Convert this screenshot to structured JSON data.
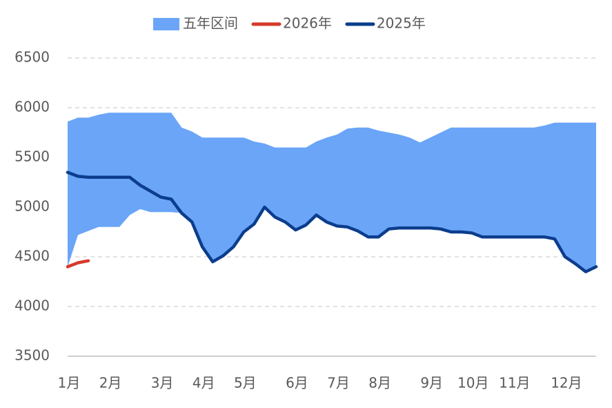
{
  "chart_data": {
    "type": "line",
    "categories": [
      "1月",
      null,
      null,
      null,
      "2月",
      null,
      null,
      null,
      null,
      "3月",
      null,
      null,
      null,
      "4月",
      null,
      null,
      null,
      "5月",
      null,
      null,
      null,
      null,
      "6月",
      null,
      null,
      null,
      "7月",
      null,
      null,
      null,
      "8月",
      null,
      null,
      null,
      null,
      "9月",
      null,
      null,
      null,
      "10月",
      null,
      null,
      null,
      "11月",
      null,
      null,
      null,
      null,
      "12月",
      null,
      null,
      null
    ],
    "series": [
      {
        "name": "五年区间",
        "type": "band",
        "color": "#6aa5f8",
        "high": [
          5860,
          5900,
          5900,
          5930,
          5950,
          5950,
          5950,
          5950,
          5950,
          5950,
          5950,
          5800,
          5760,
          5700,
          5700,
          5700,
          5700,
          5700,
          5660,
          5640,
          5600,
          5600,
          5600,
          5600,
          5660,
          5700,
          5730,
          5790,
          5800,
          5800,
          5770,
          5750,
          5730,
          5700,
          5650,
          5700,
          5750,
          5800,
          5800,
          5800,
          5800,
          5800,
          5800,
          5800,
          5800,
          5800,
          5820,
          5850,
          5850,
          5850,
          5850,
          5850
        ],
        "low": [
          4400,
          4720,
          4760,
          4800,
          4800,
          4800,
          4920,
          4980,
          4950,
          4950,
          4950,
          4940,
          4850,
          4600,
          4450,
          4510,
          4600,
          4750,
          4830,
          5000,
          4900,
          4850,
          4770,
          4820,
          4920,
          4850,
          4810,
          4800,
          4760,
          4700,
          4700,
          4780,
          4790,
          4790,
          4790,
          4790,
          4780,
          4750,
          4750,
          4740,
          4700,
          4700,
          4700,
          4700,
          4700,
          4700,
          4700,
          4680,
          4500,
          4430,
          4350,
          4400
        ]
      },
      {
        "name": "2026年",
        "color": "#d63a2a",
        "values": [
          4400,
          4440,
          4460,
          null,
          null,
          null,
          null,
          null,
          null,
          null,
          null,
          null,
          null,
          null,
          null,
          null,
          null,
          null,
          null,
          null,
          null,
          null,
          null,
          null,
          null,
          null,
          null,
          null,
          null,
          null,
          null,
          null,
          null,
          null,
          null,
          null,
          null,
          null,
          null,
          null,
          null,
          null,
          null,
          null,
          null,
          null,
          null,
          null,
          null,
          null,
          null,
          null
        ]
      },
      {
        "name": "2025年",
        "color": "#0c3d8c",
        "values": [
          5350,
          5310,
          5300,
          5300,
          5300,
          5300,
          5300,
          5220,
          5160,
          5100,
          5080,
          4940,
          4850,
          4600,
          4450,
          4510,
          4600,
          4750,
          4830,
          5000,
          4900,
          4850,
          4770,
          4820,
          4920,
          4850,
          4810,
          4800,
          4760,
          4700,
          4700,
          4780,
          4790,
          4790,
          4790,
          4790,
          4780,
          4750,
          4750,
          4740,
          4700,
          4700,
          4700,
          4700,
          4700,
          4700,
          4700,
          4680,
          4500,
          4430,
          4350,
          4400
        ]
      }
    ],
    "ylim": [
      3500,
      6500
    ],
    "yticks": [
      3500,
      4000,
      4500,
      5000,
      5500,
      6000,
      6500
    ],
    "grid": true,
    "legend": "top"
  }
}
